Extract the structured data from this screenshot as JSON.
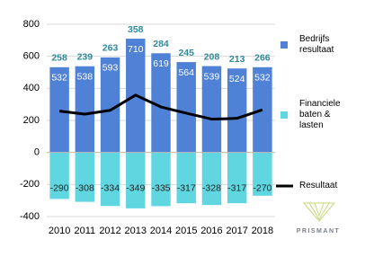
{
  "chart_data": {
    "type": "bar",
    "stacked": true,
    "categories": [
      "2010",
      "2011",
      "2012",
      "2013",
      "2014",
      "2015",
      "2016",
      "2017",
      "2018"
    ],
    "series": [
      {
        "name": "Bedrijfs resultaat",
        "type": "bar",
        "color": "#4f81d6",
        "values": [
          532,
          538,
          593,
          710,
          619,
          564,
          539,
          524,
          532
        ]
      },
      {
        "name": "Financiele baten & lasten",
        "type": "bar",
        "color": "#5fd6e0",
        "values": [
          -290,
          -308,
          -334,
          -349,
          -335,
          -317,
          -328,
          -317,
          -270
        ]
      },
      {
        "name": "Resultaat",
        "type": "line",
        "color": "#000000",
        "values": [
          258,
          239,
          263,
          358,
          284,
          245,
          208,
          213,
          266
        ]
      }
    ],
    "ylim": [
      -400,
      800
    ],
    "yticks": [
      -400,
      -200,
      0,
      200,
      400,
      600,
      800
    ],
    "grid": true,
    "legend": "right",
    "watermark": "PRISMANT"
  }
}
